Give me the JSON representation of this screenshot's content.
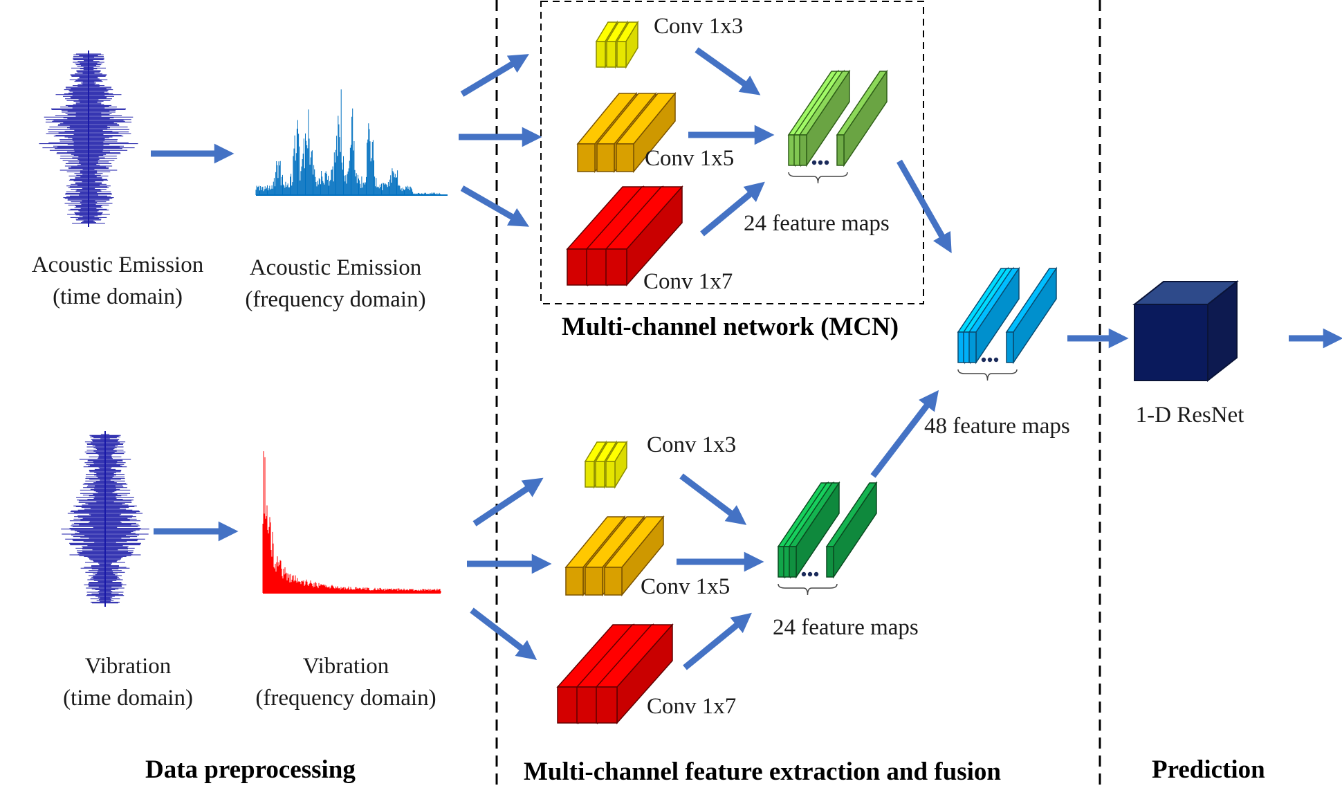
{
  "preprocessing": {
    "ae_time": [
      "Acoustic Emission",
      "(time domain)"
    ],
    "ae_freq": [
      "Acoustic Emission",
      "(frequency domain)"
    ],
    "vib_time": [
      "Vibration",
      "(time domain)"
    ],
    "vib_freq": [
      "Vibration",
      "(frequency domain)"
    ],
    "section_title": "Data preprocessing"
  },
  "mcn": {
    "title": "Multi-channel network (MCN)",
    "top": {
      "conv3": "Conv 1x3",
      "conv5": "Conv 1x5",
      "conv7": "Conv 1x7",
      "maps": "24 feature maps"
    },
    "bottom": {
      "conv3": "Conv 1x3",
      "conv5": "Conv 1x5",
      "conv7": "Conv 1x7",
      "maps": "24 feature maps"
    },
    "fused_maps": "48 feature maps",
    "section_title": "Multi-channel feature extraction and fusion"
  },
  "prediction": {
    "model": "1-D ResNet",
    "section_title": "Prediction"
  },
  "colors": {
    "arrow": "#4472C4",
    "ae_signal": "#1a1aa8",
    "ae_spectrum": "#0070C0",
    "vib_signal": "#1a1aa8",
    "vib_spectrum": "#ff0000",
    "conv3": "#e6e600",
    "conv5": "#d9a000",
    "conv7": "#d40000",
    "maps_top": "#70ad47",
    "maps_bottom": "#109040",
    "maps_fused": "#0098d8",
    "resnet": "#102060"
  }
}
